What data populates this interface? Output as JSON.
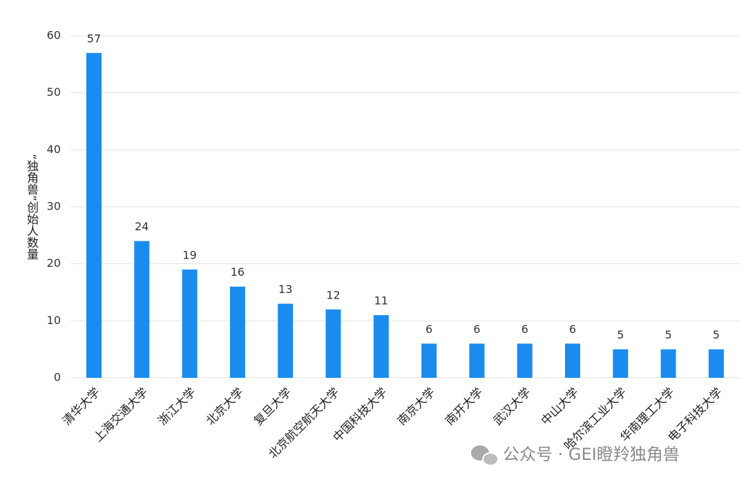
{
  "chart_data": {
    "type": "bar",
    "ylabel": "“独角兽”创始人数量",
    "categories": [
      "清华大学",
      "上海交通大学",
      "浙江大学",
      "北京大学",
      "复旦大学",
      "北京航空航天大学",
      "中国科技大学",
      "南京大学",
      "南开大学",
      "武汉大学",
      "中山大学",
      "哈尔滨工业大学",
      "华南理工大学",
      "电子科技大学"
    ],
    "values": [
      57,
      24,
      19,
      16,
      13,
      12,
      11,
      6,
      6,
      6,
      6,
      5,
      5,
      5
    ],
    "color": "#1a8cf0",
    "ylim": [
      0,
      60
    ],
    "yticks": [
      0,
      10,
      20,
      30,
      40,
      50,
      60
    ],
    "grid": true,
    "watermark": "公众号 · GEI瞪羚独角兽"
  }
}
